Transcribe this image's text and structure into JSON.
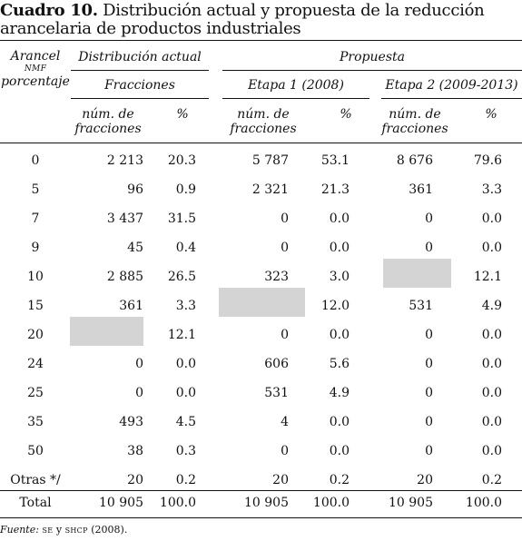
{
  "title": {
    "label": "Cuadro 10.",
    "text": "Distribución actual y propuesta de la reducción arancelaria de productos industriales"
  },
  "header": {
    "arancel_line1": "Arancel",
    "arancel_line2": "NMF",
    "arancel_line3": "porcentaje",
    "distribucion": "Distribución actual",
    "propuesta": "Propuesta",
    "fracciones": "Fracciones",
    "etapa1": "Etapa 1 (2008)",
    "etapa2": "Etapa 2 (2009-2013)",
    "num_line1": "núm. de",
    "num_line2": "fracciones",
    "pct": "%"
  },
  "rows": [
    {
      "arancel": "0",
      "da_num": "2 213",
      "da_pct": "20.3",
      "e1_num": "5 787",
      "e1_pct": "53.1",
      "e2_num": "8 676",
      "e2_pct": "79.6"
    },
    {
      "arancel": "5",
      "da_num": "96",
      "da_pct": "0.9",
      "e1_num": "2 321",
      "e1_pct": "21.3",
      "e2_num": "361",
      "e2_pct": "3.3"
    },
    {
      "arancel": "7",
      "da_num": "3 437",
      "da_pct": "31.5",
      "e1_num": "0",
      "e1_pct": "0.0",
      "e2_num": "0",
      "e2_pct": "0.0"
    },
    {
      "arancel": "9",
      "da_num": "45",
      "da_pct": "0.4",
      "e1_num": "0",
      "e1_pct": "0.0",
      "e2_num": "0",
      "e2_pct": "0.0"
    },
    {
      "arancel": "10",
      "da_num": "2 885",
      "da_pct": "26.5",
      "e1_num": "323",
      "e1_pct": "3.0",
      "e2_num": "",
      "e2_pct": "12.1"
    },
    {
      "arancel": "15",
      "da_num": "361",
      "da_pct": "3.3",
      "e1_num": "",
      "e1_pct": "12.0",
      "e2_num": "531",
      "e2_pct": "4.9"
    },
    {
      "arancel": "20",
      "da_num": "",
      "da_pct": "12.1",
      "e1_num": "0",
      "e1_pct": "0.0",
      "e2_num": "0",
      "e2_pct": "0.0"
    },
    {
      "arancel": "24",
      "da_num": "0",
      "da_pct": "0.0",
      "e1_num": "606",
      "e1_pct": "5.6",
      "e2_num": "0",
      "e2_pct": "0.0"
    },
    {
      "arancel": "25",
      "da_num": "0",
      "da_pct": "0.0",
      "e1_num": "531",
      "e1_pct": "4.9",
      "e2_num": "0",
      "e2_pct": "0.0"
    },
    {
      "arancel": "35",
      "da_num": "493",
      "da_pct": "4.5",
      "e1_num": "4",
      "e1_pct": "0.0",
      "e2_num": "0",
      "e2_pct": "0.0"
    },
    {
      "arancel": "50",
      "da_num": "38",
      "da_pct": "0.3",
      "e1_num": "0",
      "e1_pct": "0.0",
      "e2_num": "0",
      "e2_pct": "0.0"
    },
    {
      "arancel": "Otras */",
      "da_num": "20",
      "da_pct": "0.2",
      "e1_num": "20",
      "e1_pct": "0.2",
      "e2_num": "20",
      "e2_pct": "0.2"
    },
    {
      "arancel": "Total",
      "da_num": "10 905",
      "da_pct": "100.0",
      "e1_num": "10 905",
      "e1_pct": "100.0",
      "e2_num": "10 905",
      "e2_pct": "100.0"
    }
  ],
  "source": {
    "label": "Fuente:",
    "se": "SE",
    "y": "y",
    "shcp": "SHCP",
    "year": "(2008)."
  },
  "colors": {
    "shade": "#d4d4d4",
    "rule": "#111111"
  }
}
